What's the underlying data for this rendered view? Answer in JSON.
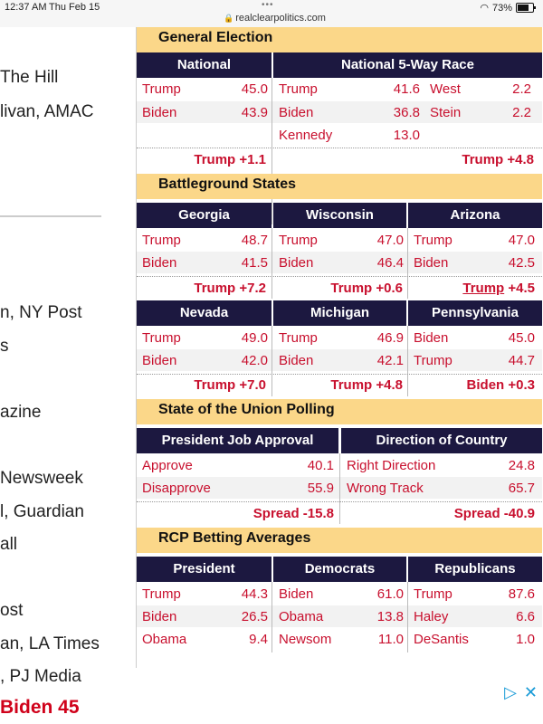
{
  "status": {
    "time": "12:37 AM",
    "date": "Thu Feb 15",
    "url": "realclearpolitics.com",
    "battery": "73%"
  },
  "left": {
    "items": [
      "The Hill",
      "livan, AMAC",
      "n, NY Post",
      "s",
      "azine",
      "Newsweek",
      "l, Guardian",
      "all",
      "ost",
      "an, LA Times",
      ", PJ Media"
    ],
    "headline": "Biden 45"
  },
  "general": {
    "title": "General Election",
    "national": {
      "header": "National",
      "rows": [
        {
          "name": "Trump",
          "value": "45.0"
        },
        {
          "name": "Biden",
          "value": "43.9"
        }
      ],
      "spread": "Trump +1.1"
    },
    "fiveway": {
      "header": "National 5-Way Race",
      "left": [
        {
          "name": "Trump",
          "value": "41.6"
        },
        {
          "name": "Biden",
          "value": "36.8"
        },
        {
          "name": "Kennedy",
          "value": "13.0"
        }
      ],
      "right": [
        {
          "name": "West",
          "value": "2.2"
        },
        {
          "name": "Stein",
          "value": "2.2"
        }
      ],
      "spread": "Trump +4.8"
    }
  },
  "battleground": {
    "title": "Battleground States",
    "states": [
      {
        "header": "Georgia",
        "rows": [
          {
            "name": "Trump",
            "value": "48.7"
          },
          {
            "name": "Biden",
            "value": "41.5"
          }
        ],
        "spread": "Trump +7.2"
      },
      {
        "header": "Wisconsin",
        "rows": [
          {
            "name": "Trump",
            "value": "47.0"
          },
          {
            "name": "Biden",
            "value": "46.4"
          }
        ],
        "spread": "Trump +0.6"
      },
      {
        "header": "Arizona",
        "rows": [
          {
            "name": "Trump",
            "value": "47.0"
          },
          {
            "name": "Biden",
            "value": "42.5"
          }
        ],
        "spread_name": "Trump",
        "spread_value": "+4.5"
      },
      {
        "header": "Nevada",
        "rows": [
          {
            "name": "Trump",
            "value": "49.0"
          },
          {
            "name": "Biden",
            "value": "42.0"
          }
        ],
        "spread": "Trump +7.0"
      },
      {
        "header": "Michigan",
        "rows": [
          {
            "name": "Trump",
            "value": "46.9"
          },
          {
            "name": "Biden",
            "value": "42.1"
          }
        ],
        "spread": "Trump +4.8"
      },
      {
        "header": "Pennsylvania",
        "rows": [
          {
            "name": "Biden",
            "value": "45.0"
          },
          {
            "name": "Trump",
            "value": "44.7"
          }
        ],
        "spread": "Biden +0.3"
      }
    ]
  },
  "sotu": {
    "title": "State of the Union Polling",
    "approval": {
      "header": "President Job Approval",
      "rows": [
        {
          "name": "Approve",
          "value": "40.1"
        },
        {
          "name": "Disapprove",
          "value": "55.9"
        }
      ],
      "spread": "Spread -15.8"
    },
    "direction": {
      "header": "Direction of Country",
      "rows": [
        {
          "name": "Right Direction",
          "value": "24.8"
        },
        {
          "name": "Wrong Track",
          "value": "65.7"
        }
      ],
      "spread": "Spread -40.9"
    }
  },
  "betting": {
    "title": "RCP Betting Averages",
    "columns": [
      {
        "header": "President",
        "rows": [
          {
            "name": "Trump",
            "value": "44.3"
          },
          {
            "name": "Biden",
            "value": "26.5"
          },
          {
            "name": "Obama",
            "value": "9.4"
          }
        ]
      },
      {
        "header": "Democrats",
        "rows": [
          {
            "name": "Biden",
            "value": "61.0"
          },
          {
            "name": "Obama",
            "value": "13.8"
          },
          {
            "name": "Newsom",
            "value": "11.0"
          }
        ]
      },
      {
        "header": "Republicans",
        "rows": [
          {
            "name": "Trump",
            "value": "87.6"
          },
          {
            "name": "Haley",
            "value": "6.6"
          },
          {
            "name": "DeSantis",
            "value": "1.0"
          }
        ]
      }
    ]
  },
  "colors": {
    "header_bg": "#1c1840",
    "section_bg": "#fbd789",
    "accent_red": "#c8102e"
  }
}
